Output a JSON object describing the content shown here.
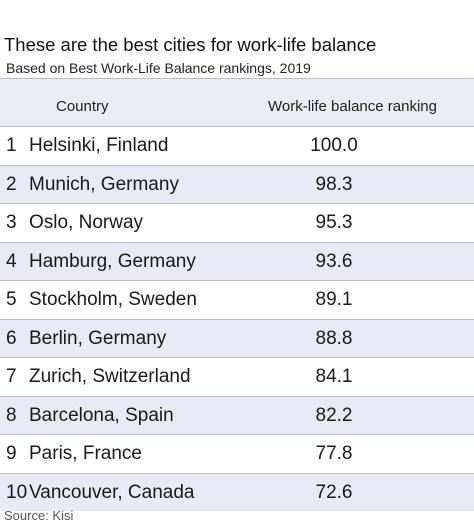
{
  "chart_data": {
    "type": "table",
    "title": "These are the best cities for work-life balance",
    "subtitle": "Based on Best Work-Life Balance rankings, 2019",
    "columns": [
      "Country",
      "Work-life balance ranking"
    ],
    "rows": [
      {
        "rank": "1",
        "city": "Helsinki, Finland",
        "score": "100.0"
      },
      {
        "rank": "2",
        "city": "Munich, Germany",
        "score": "98.3"
      },
      {
        "rank": "3",
        "city": "Oslo, Norway",
        "score": "95.3"
      },
      {
        "rank": "4",
        "city": "Hamburg, Germany",
        "score": "93.6"
      },
      {
        "rank": "5",
        "city": "Stockholm, Sweden",
        "score": "89.1"
      },
      {
        "rank": "6",
        "city": "Berlin, Germany",
        "score": "88.8"
      },
      {
        "rank": "7",
        "city": "Zurich, Switzerland",
        "score": "84.1"
      },
      {
        "rank": "8",
        "city": "Barcelona, Spain",
        "score": "82.2"
      },
      {
        "rank": "9",
        "city": "Paris, France",
        "score": "77.8"
      },
      {
        "rank": "10",
        "city": "Vancouver, Canada",
        "score": "72.6"
      }
    ],
    "source": "Source: Kisi"
  },
  "colors": {
    "shade_row": "#e8e9f2",
    "header_bg": "#ebebf3",
    "divider": "#b9bbd0"
  }
}
